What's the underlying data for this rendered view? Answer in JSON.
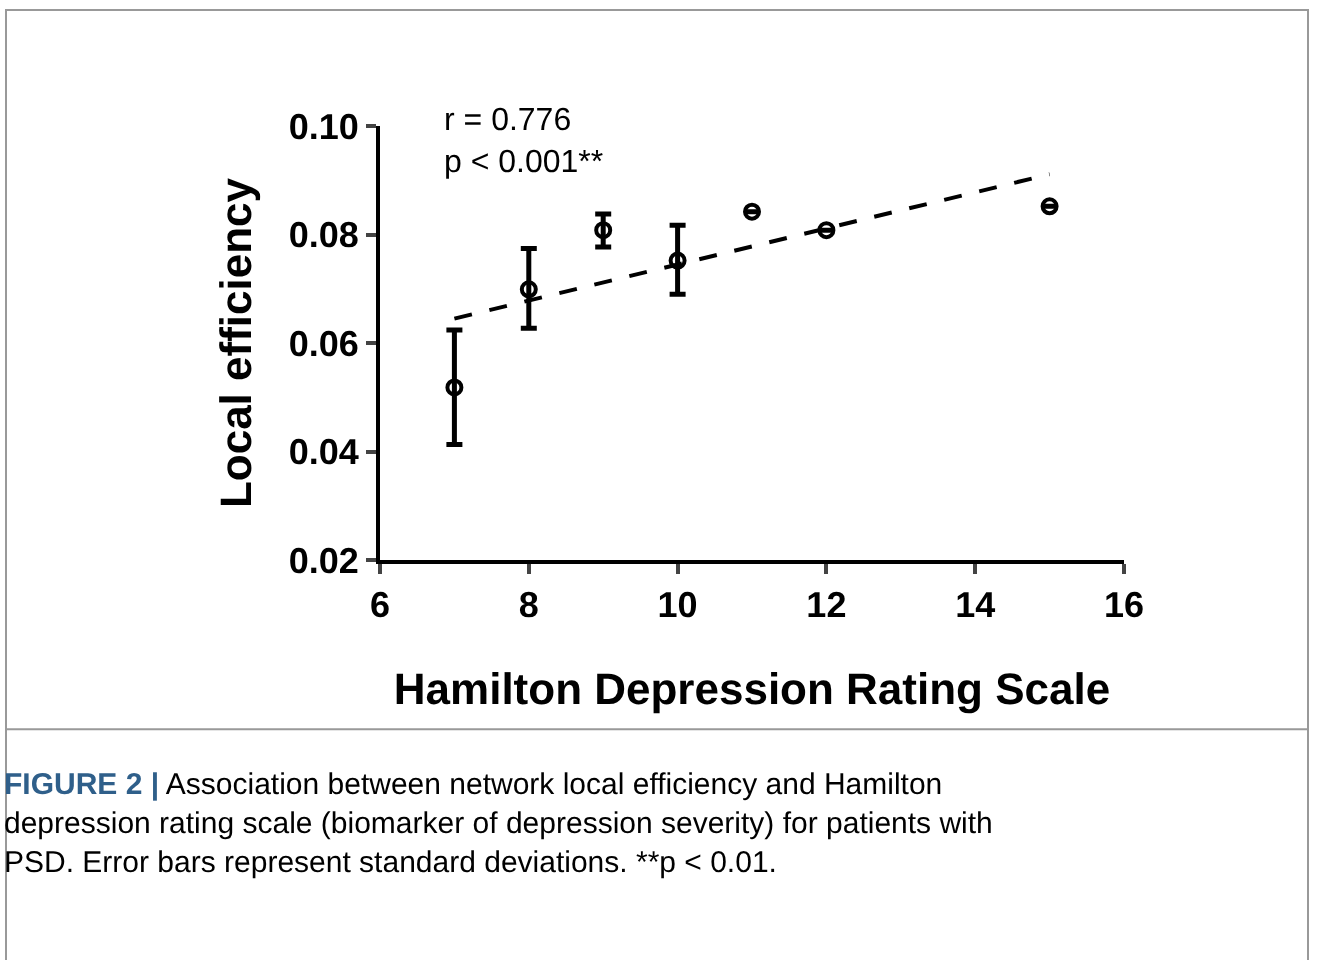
{
  "chart_data": {
    "type": "scatter",
    "xlabel": "Hamilton Depression Rating Scale",
    "ylabel": "Local efficiency",
    "xlim": [
      6,
      16
    ],
    "xticks": [
      6,
      8,
      10,
      12,
      14,
      16
    ],
    "ylim": [
      0.02,
      0.1
    ],
    "yticks": [
      {
        "value": 0.02,
        "label": "0.02"
      },
      {
        "value": 0.04,
        "label": "0.04"
      },
      {
        "value": 0.06,
        "label": "0.06"
      },
      {
        "value": 0.08,
        "label": "0.08"
      },
      {
        "value": 0.1,
        "label": "0.10"
      }
    ],
    "marker": "circle",
    "series": [
      {
        "color": "#000000",
        "x": [
          7,
          8,
          9,
          10,
          11,
          12,
          15
        ],
        "values": [
          0.0518,
          0.0699,
          0.0808,
          0.0752,
          0.0842,
          0.0808,
          0.0852
        ],
        "errors": [
          [
            0.0413,
            0.0624
          ],
          [
            0.0627,
            0.0774
          ],
          [
            0.0777,
            0.0838
          ],
          [
            0.069,
            0.0817
          ],
          null,
          null,
          null
        ]
      },
      {
        "type": "line",
        "color": "#000000",
        "line_style": "dashed",
        "marker": "none",
        "x": [
          7,
          15
        ],
        "values": [
          0.0645,
          0.0911
        ]
      }
    ],
    "annotations": [
      "r = 0.776\np < 0.001**",
      "FIGURE 2 | Association between network local efficiency and Hamilton depression rating scale (biomarker of depression severity) for patients with PSD. Error bars represent standard deviations. **p < 0.01."
    ]
  }
}
